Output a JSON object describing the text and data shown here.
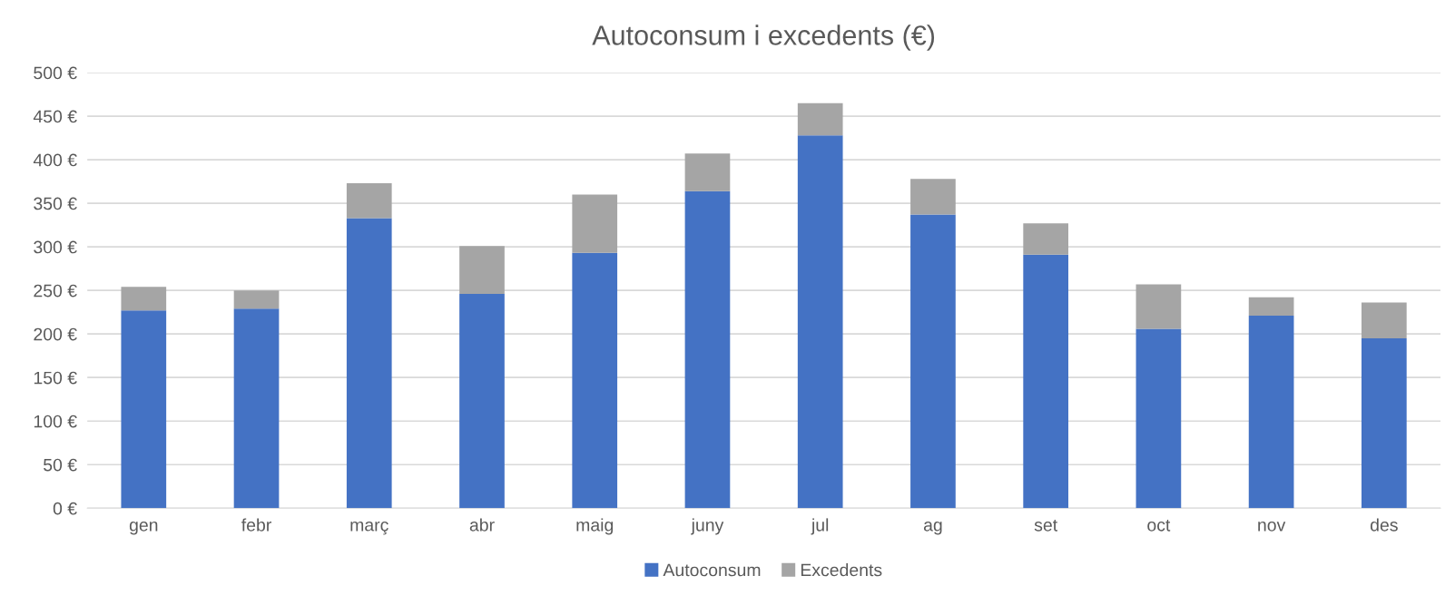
{
  "chart_data": {
    "type": "bar",
    "title": "Autoconsum i excedents (€)",
    "stacked": true,
    "categories": [
      "gen",
      "febr",
      "març",
      "abr",
      "maig",
      "juny",
      "jul",
      "ag",
      "set",
      "oct",
      "nov",
      "des"
    ],
    "series": [
      {
        "name": "Autoconsum",
        "color": "#4472c4",
        "values": [
          227,
          229,
          333,
          246,
          293,
          364,
          428,
          337,
          291,
          206,
          221,
          195
        ]
      },
      {
        "name": "Excedents",
        "color": "#a5a5a5",
        "values": [
          27,
          21,
          40,
          55,
          67,
          43,
          37,
          41,
          36,
          51,
          21,
          41
        ]
      }
    ],
    "ylim": [
      0,
      500
    ],
    "yticks": [
      {
        "value": 0,
        "label": "0 €"
      },
      {
        "value": 50,
        "label": "50 €"
      },
      {
        "value": 100,
        "label": "100 €"
      },
      {
        "value": 150,
        "label": "150 €"
      },
      {
        "value": 200,
        "label": "200 €"
      },
      {
        "value": 250,
        "label": "250 €"
      },
      {
        "value": 300,
        "label": "300 €"
      },
      {
        "value": 350,
        "label": "350 €"
      },
      {
        "value": 400,
        "label": "400 €"
      },
      {
        "value": 450,
        "label": "450 €"
      },
      {
        "value": 500,
        "label": "500 €"
      }
    ],
    "grid": "y",
    "legend": "bottom"
  }
}
